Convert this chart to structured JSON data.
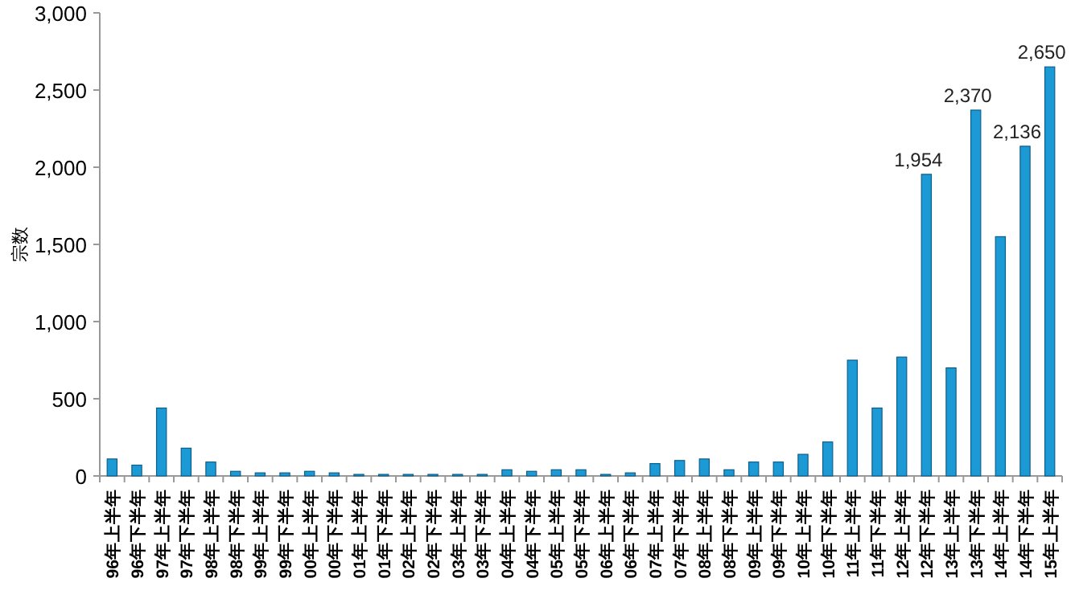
{
  "chart_data": {
    "type": "bar",
    "ylabel": "宗数",
    "categories": [
      "96年上半年",
      "96年下半年",
      "97年上半年",
      "97年下半年",
      "98年上半年",
      "98年下半年",
      "99年上半年",
      "99年下半年",
      "00年上半年",
      "00年下半年",
      "01年上半年",
      "01年下半年",
      "02年上半年",
      "02年下半年",
      "03年上半年",
      "03年下半年",
      "04年上半年",
      "04年下半年",
      "05年上半年",
      "05年下半年",
      "06年上半年",
      "06年下半年",
      "07年上半年",
      "07年下半年",
      "08年上半年",
      "08年下半年",
      "09年上半年",
      "09年下半年",
      "10年上半年",
      "10年下半年",
      "11年上半年",
      "11年下半年",
      "12年上半年",
      "12年下半年",
      "13年上半年",
      "13年下半年",
      "14年上半年",
      "14年下半年",
      "15年上半年"
    ],
    "values": [
      110,
      70,
      440,
      180,
      90,
      30,
      20,
      20,
      30,
      20,
      10,
      10,
      10,
      10,
      10,
      10,
      40,
      30,
      40,
      40,
      10,
      20,
      80,
      100,
      110,
      40,
      90,
      90,
      140,
      220,
      750,
      440,
      770,
      1954,
      700,
      2370,
      1550,
      2136,
      2650
    ],
    "value_labels": [
      null,
      null,
      null,
      null,
      null,
      null,
      null,
      null,
      null,
      null,
      null,
      null,
      null,
      null,
      null,
      null,
      null,
      null,
      null,
      null,
      null,
      null,
      null,
      null,
      null,
      null,
      null,
      null,
      null,
      null,
      null,
      null,
      null,
      "1,954",
      null,
      "2,370",
      null,
      "2,136",
      "2,650"
    ],
    "color": "#1b9ad6",
    "ylim": [
      0,
      3000
    ],
    "yticks": [
      {
        "value": 0,
        "label": "0"
      },
      {
        "value": 500,
        "label": "500"
      },
      {
        "value": 1000,
        "label": "1,000"
      },
      {
        "value": 1500,
        "label": "1,500"
      },
      {
        "value": 2000,
        "label": "2,000"
      },
      {
        "value": 2500,
        "label": "2,500"
      },
      {
        "value": 3000,
        "label": "3,000"
      }
    ],
    "grid": false
  }
}
